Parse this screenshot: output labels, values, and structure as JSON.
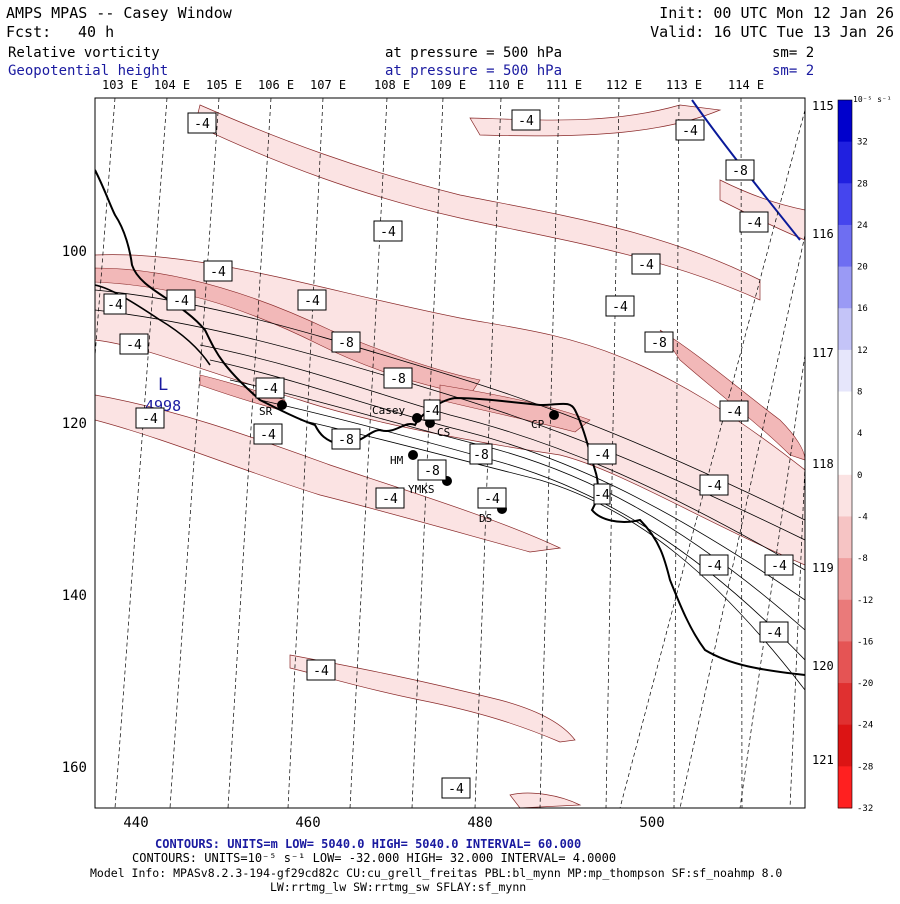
{
  "header": {
    "title": "AMPS MPAS -- Casey Window",
    "fcst_label": "Fcst:",
    "fcst_value": "40 h",
    "init": "Init: 00 UTC Mon 12 Jan 26",
    "valid": "Valid: 16 UTC Tue 13 Jan 26",
    "field1": "Relative vorticity",
    "field1_level": "at pressure =  500 hPa",
    "field1_sm": "sm= 2",
    "field2": "Geopotential height",
    "field2_level": "at pressure =  500 hPa",
    "field2_sm": "sm= 2"
  },
  "colors": {
    "accent_blue": "#1a1aa0",
    "shade_light": "#fbe3e3",
    "shade_mid": "#f6c4c4",
    "shade_dark": "#efa0a0"
  },
  "map": {
    "lon_labels_top": [
      "103 E",
      "104 E",
      "105 E",
      "106 E",
      "107 E",
      "108 E",
      "109 E",
      "110 E",
      "111 E",
      "112 E",
      "113 E",
      "114 E"
    ],
    "lon_labels_right": [
      "115 E",
      "116 E",
      "117 E",
      "118 E",
      "119 E",
      "120 E",
      "121 E"
    ],
    "x_ticks": [
      "440",
      "460",
      "480",
      "500"
    ],
    "y_ticks": [
      "100",
      "120",
      "140",
      "160"
    ],
    "low_label": "L",
    "low_value": "4998",
    "stations": [
      "Casey",
      "CS",
      "CP",
      "SR",
      "HM",
      "YMKS",
      "DS"
    ],
    "contour_labels": [
      "-4",
      "-8"
    ]
  },
  "colorbar": {
    "unit": "10⁻⁵ s⁻¹",
    "labels": [
      "32",
      "28",
      "24",
      "20",
      "16",
      "12",
      "8",
      "4",
      "0",
      "-4",
      "-8",
      "-12",
      "-16",
      "-20",
      "-24",
      "-28",
      "-32"
    ],
    "colors": [
      "#0000cc",
      "#2020e0",
      "#4545ee",
      "#6e6ef2",
      "#9a9af5",
      "#c4c4f8",
      "#e6e6fb",
      "#ffffff",
      "#ffffff",
      "#fbe3e3",
      "#f6c4c4",
      "#f0a0a0",
      "#ea7a7a",
      "#e55454",
      "#e03030",
      "#dc1414",
      "#ff2020"
    ]
  },
  "footer": {
    "contours1": "CONTOURS:  UNITS=m  LOW=  5040.0         HIGH=  5040.0       INTERVAL=   60.000",
    "contours2": "CONTOURS:  UNITS=10⁻⁵ s⁻¹  LOW= -32.000        HIGH=  32.000        INTERVAL=   4.0000",
    "model_info": "Model Info: MPASv8.2.3-194-gf29cd82c CU:cu_grell_freitas PBL:bl_mynn MP:mp_thompson SF:sf_noahmp 8.0",
    "model_info2": "LW:rrtmg_lw SW:rrtmg_sw SFLAY:sf_mynn"
  }
}
